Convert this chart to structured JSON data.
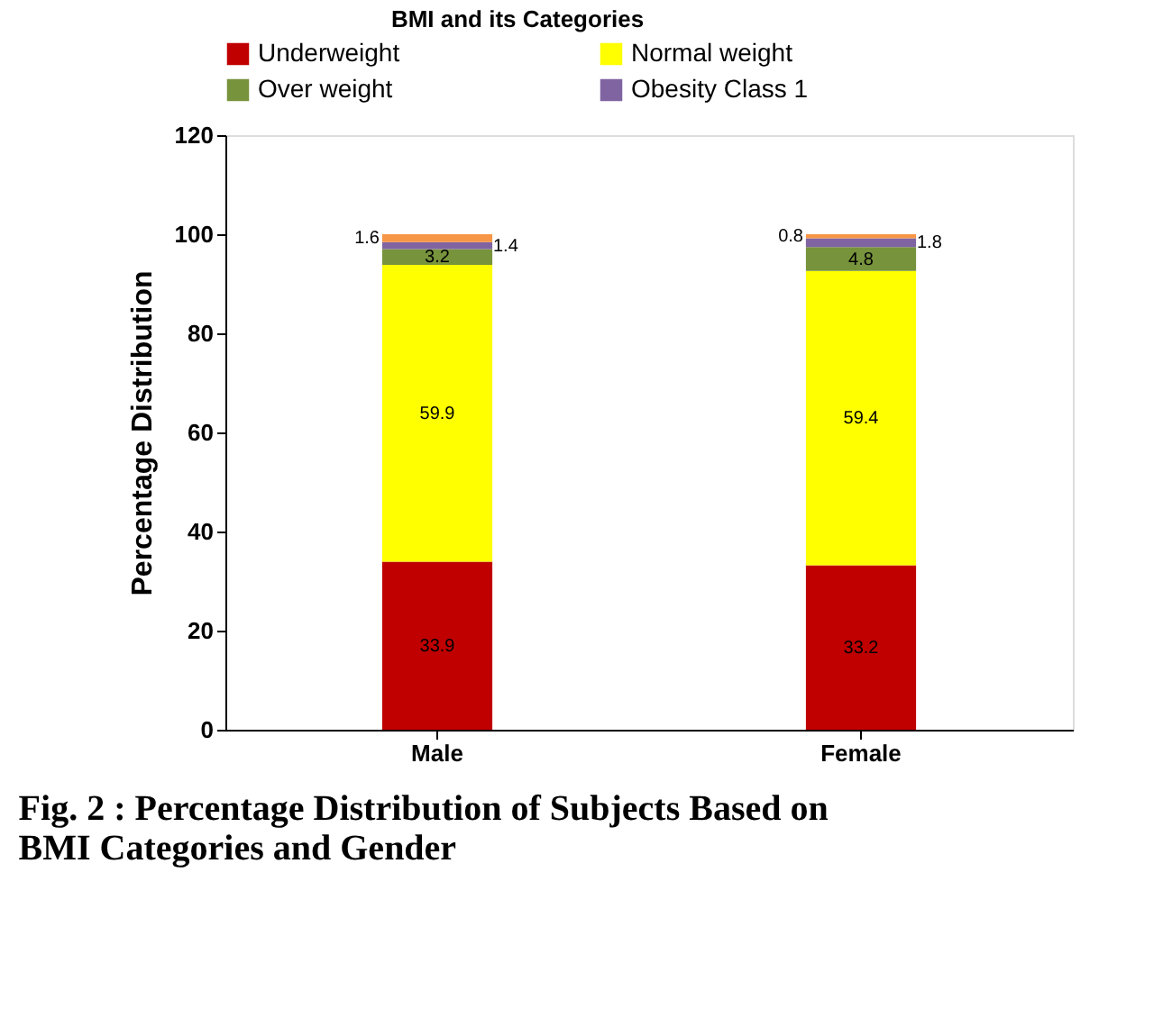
{
  "chart_data": {
    "type": "bar",
    "stacked": true,
    "legend_title": "BMI and its Categories",
    "ylabel": "Percentage Distribution",
    "categories": [
      "Male",
      "Female"
    ],
    "series": [
      {
        "name": "Underweight",
        "color": "#c00000",
        "values": [
          33.9,
          33.2
        ]
      },
      {
        "name": "Normal weight",
        "color": "#ffff00",
        "values": [
          59.9,
          59.4
        ]
      },
      {
        "name": "Over weight",
        "color": "#77933c",
        "values": [
          3.2,
          4.8
        ]
      },
      {
        "name": "Obesity Class 1",
        "color": "#8064a2",
        "values": [
          1.4,
          1.8
        ]
      },
      {
        "color": "#f79646",
        "values": [
          1.6,
          0.8
        ]
      }
    ],
    "ylim": [
      0,
      120
    ],
    "yticks": [
      0,
      20,
      40,
      60,
      80,
      100,
      120
    ],
    "grid": false,
    "legend": "top",
    "data_labels": true,
    "annotations": [
      "Fig. 2 :   Percentage Distribution of Subjects Based on BMI Categories and Gender"
    ]
  }
}
